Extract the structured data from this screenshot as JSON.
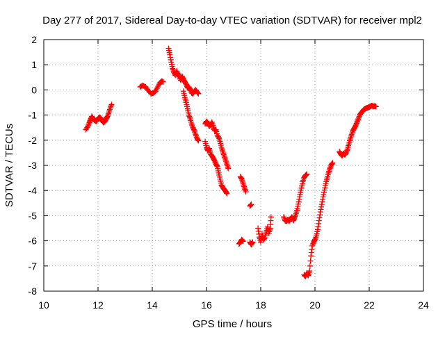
{
  "chart_data": {
    "type": "scatter",
    "title": "Day 277 of 2017, Sidereal Day-to-day VTEC variation (SDTVAR) for receiver mpl2",
    "xlabel": "GPS time / hours",
    "ylabel": "SDTVAR / TECUs",
    "xlim": [
      10,
      24
    ],
    "ylim": [
      -8,
      2
    ],
    "xticks": [
      10,
      12,
      14,
      16,
      18,
      20,
      22,
      24
    ],
    "yticks": [
      -8,
      -7,
      -6,
      -5,
      -4,
      -3,
      -2,
      -1,
      0,
      1,
      2
    ],
    "grid": true,
    "marker": "+",
    "series": [
      {
        "name": "SDTVAR",
        "color": "#ff0000",
        "segments": [
          [
            [
              11.55,
              -1.58
            ],
            [
              11.62,
              -1.45
            ],
            [
              11.68,
              -1.3
            ],
            [
              11.72,
              -1.18
            ],
            [
              11.77,
              -1.05
            ],
            [
              11.82,
              -1.15
            ],
            [
              11.88,
              -1.22
            ],
            [
              11.94,
              -1.25
            ],
            [
              12.0,
              -1.15
            ],
            [
              12.05,
              -1.08
            ],
            [
              12.1,
              -1.12
            ],
            [
              12.15,
              -1.22
            ],
            [
              12.2,
              -1.3
            ],
            [
              12.25,
              -1.25
            ],
            [
              12.3,
              -1.15
            ],
            [
              12.35,
              -1.05
            ],
            [
              12.4,
              -0.9
            ],
            [
              12.45,
              -0.72
            ],
            [
              12.5,
              -0.58
            ]
          ],
          [
            [
              13.55,
              0.12
            ],
            [
              13.65,
              0.18
            ],
            [
              13.75,
              0.12
            ],
            [
              13.85,
              -0.02
            ],
            [
              13.95,
              -0.15
            ],
            [
              14.05,
              -0.12
            ],
            [
              14.12,
              -0.05
            ],
            [
              14.2,
              0.12
            ],
            [
              14.28,
              0.28
            ],
            [
              14.35,
              0.35
            ],
            [
              14.4,
              0.32
            ]
          ],
          [
            [
              14.6,
              1.65
            ],
            [
              14.65,
              1.4
            ],
            [
              14.7,
              1.1
            ],
            [
              14.75,
              0.85
            ],
            [
              14.8,
              0.7
            ],
            [
              14.85,
              0.58
            ],
            [
              14.9,
              0.75
            ],
            [
              14.95,
              0.62
            ],
            [
              15.0,
              0.52
            ],
            [
              15.05,
              0.38
            ],
            [
              15.1,
              0.55
            ],
            [
              15.15,
              0.42
            ],
            [
              15.2,
              0.32
            ],
            [
              15.25,
              0.22
            ],
            [
              15.3,
              0.08
            ],
            [
              15.35,
              0.12
            ],
            [
              15.4,
              0.02
            ],
            [
              15.45,
              -0.12
            ],
            [
              15.5,
              -0.15
            ],
            [
              15.55,
              -0.05
            ],
            [
              15.6,
              0.0
            ],
            [
              15.65,
              -0.08
            ],
            [
              15.7,
              -0.15
            ]
          ],
          [
            [
              15.15,
              -0.05
            ],
            [
              15.2,
              -0.3
            ],
            [
              15.25,
              -0.5
            ],
            [
              15.3,
              -0.75
            ],
            [
              15.35,
              -1.0
            ],
            [
              15.4,
              -1.15
            ],
            [
              15.45,
              -1.35
            ],
            [
              15.5,
              -1.5
            ],
            [
              15.55,
              -1.62
            ],
            [
              15.6,
              -1.78
            ],
            [
              15.65,
              -1.92
            ],
            [
              15.7,
              -2.02
            ]
          ],
          [
            [
              15.95,
              -1.35
            ],
            [
              16.0,
              -1.25
            ],
            [
              16.05,
              -1.32
            ],
            [
              16.1,
              -1.45
            ],
            [
              16.15,
              -1.38
            ],
            [
              16.2,
              -1.28
            ],
            [
              16.25,
              -1.48
            ],
            [
              16.3,
              -1.62
            ],
            [
              16.35,
              -1.58
            ],
            [
              16.4,
              -1.82
            ],
            [
              16.45,
              -1.88
            ],
            [
              16.5,
              -2.05
            ],
            [
              16.55,
              -2.28
            ],
            [
              16.6,
              -2.45
            ],
            [
              16.65,
              -2.62
            ],
            [
              16.7,
              -2.78
            ],
            [
              16.75,
              -2.95
            ],
            [
              16.8,
              -3.12
            ]
          ],
          [
            [
              15.95,
              -2.05
            ],
            [
              16.0,
              -2.3
            ],
            [
              16.05,
              -2.42
            ],
            [
              16.1,
              -2.32
            ],
            [
              16.15,
              -2.55
            ],
            [
              16.2,
              -2.62
            ],
            [
              16.25,
              -2.72
            ],
            [
              16.3,
              -2.82
            ],
            [
              16.35,
              -2.95
            ],
            [
              16.4,
              -3.05
            ],
            [
              16.45,
              -3.3
            ],
            [
              16.5,
              -3.55
            ],
            [
              16.55,
              -3.78
            ],
            [
              16.6,
              -3.88
            ],
            [
              16.65,
              -3.95
            ],
            [
              16.7,
              -4.02
            ],
            [
              16.75,
              -4.12
            ]
          ],
          [
            [
              17.2,
              -6.12
            ],
            [
              17.25,
              -6.05
            ],
            [
              17.3,
              -5.95
            ],
            [
              17.35,
              -6.02
            ]
          ],
          [
            [
              17.25,
              -3.45
            ],
            [
              17.3,
              -3.55
            ],
            [
              17.35,
              -3.72
            ],
            [
              17.4,
              -3.9
            ],
            [
              17.45,
              -4.05
            ]
          ],
          [
            [
              17.6,
              -4.62
            ],
            [
              17.65,
              -4.55
            ]
          ],
          [
            [
              17.6,
              -6.05
            ],
            [
              17.65,
              -6.15
            ],
            [
              17.7,
              -6.05
            ]
          ],
          [
            [
              17.9,
              -5.5
            ],
            [
              17.95,
              -5.85
            ],
            [
              18.0,
              -6.05
            ],
            [
              18.05,
              -5.72
            ],
            [
              18.1,
              -5.95
            ],
            [
              18.15,
              -5.88
            ],
            [
              18.2,
              -5.65
            ],
            [
              18.25,
              -5.45
            ],
            [
              18.3,
              -5.7
            ],
            [
              18.35,
              -5.5
            ],
            [
              18.38,
              -5.05
            ]
          ],
          [
            [
              18.85,
              -5.05
            ],
            [
              18.9,
              -5.2
            ],
            [
              18.95,
              -5.22
            ],
            [
              19.0,
              -5.15
            ],
            [
              19.05,
              -5.22
            ],
            [
              19.1,
              -5.12
            ],
            [
              19.15,
              -5.05
            ],
            [
              19.2,
              -5.2
            ],
            [
              19.25,
              -5.08
            ],
            [
              19.3,
              -4.92
            ],
            [
              19.35,
              -4.72
            ],
            [
              19.4,
              -4.45
            ],
            [
              19.45,
              -4.15
            ],
            [
              19.5,
              -3.9
            ],
            [
              19.55,
              -3.65
            ],
            [
              19.6,
              -3.48
            ],
            [
              19.65,
              -3.4
            ],
            [
              19.7,
              -3.35
            ]
          ],
          [
            [
              19.6,
              -7.35
            ],
            [
              19.65,
              -7.42
            ],
            [
              19.7,
              -7.28
            ],
            [
              19.75,
              -7.38
            ],
            [
              19.8,
              -7.2
            ],
            [
              19.85,
              -6.6
            ],
            [
              19.9,
              -6.2
            ],
            [
              19.95,
              -6.05
            ],
            [
              20.0,
              -5.95
            ],
            [
              20.05,
              -5.8
            ],
            [
              20.1,
              -5.55
            ],
            [
              20.15,
              -5.2
            ],
            [
              20.2,
              -4.85
            ],
            [
              20.25,
              -4.55
            ],
            [
              20.3,
              -4.25
            ],
            [
              20.35,
              -3.98
            ],
            [
              20.4,
              -3.72
            ],
            [
              20.45,
              -3.5
            ],
            [
              20.5,
              -3.3
            ],
            [
              20.55,
              -3.12
            ],
            [
              20.6,
              -2.98
            ],
            [
              20.65,
              -2.9
            ]
          ],
          [
            [
              20.9,
              -2.45
            ],
            [
              20.95,
              -2.55
            ],
            [
              21.0,
              -2.62
            ],
            [
              21.05,
              -2.52
            ],
            [
              21.1,
              -2.58
            ],
            [
              21.15,
              -2.5
            ],
            [
              21.2,
              -2.35
            ],
            [
              21.25,
              -2.15
            ],
            [
              21.3,
              -1.95
            ],
            [
              21.35,
              -1.78
            ],
            [
              21.4,
              -1.62
            ],
            [
              21.45,
              -1.52
            ],
            [
              21.5,
              -1.42
            ],
            [
              21.55,
              -1.28
            ],
            [
              21.6,
              -1.15
            ],
            [
              21.65,
              -1.0
            ],
            [
              21.7,
              -0.92
            ],
            [
              21.75,
              -0.85
            ],
            [
              21.8,
              -0.78
            ],
            [
              21.85,
              -0.75
            ],
            [
              21.9,
              -0.72
            ],
            [
              21.95,
              -0.7
            ],
            [
              22.0,
              -0.68
            ],
            [
              22.05,
              -0.65
            ],
            [
              22.1,
              -0.62
            ],
            [
              22.15,
              -0.66
            ],
            [
              22.2,
              -0.64
            ],
            [
              22.25,
              -0.66
            ]
          ]
        ]
      }
    ]
  }
}
